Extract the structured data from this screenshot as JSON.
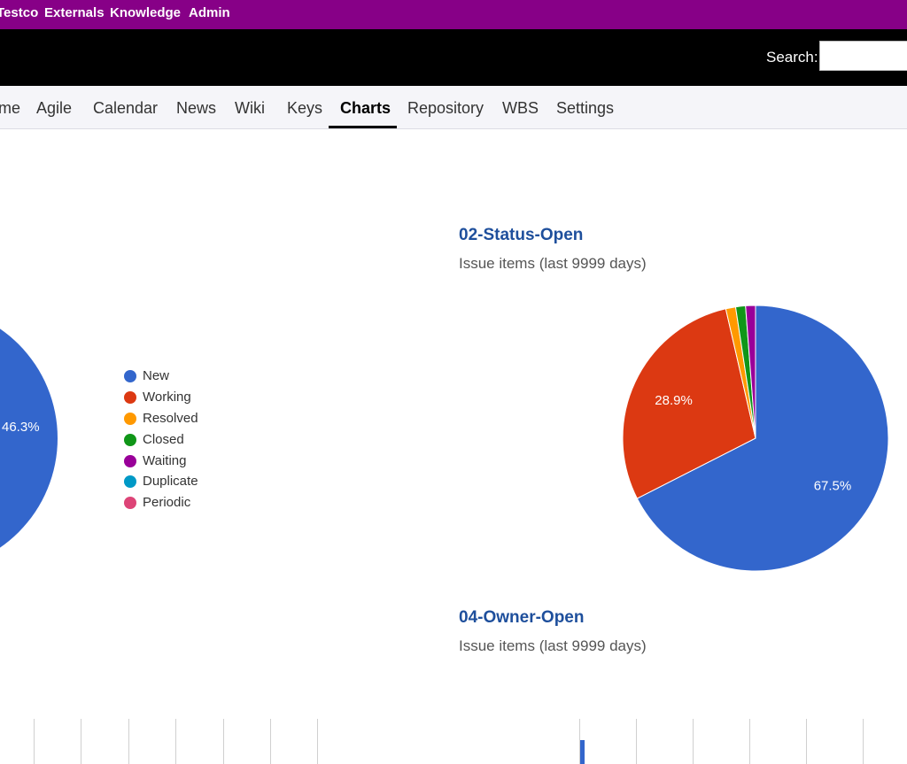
{
  "topnav": [
    "Testco",
    "Externals",
    "Knowledge",
    "Admin"
  ],
  "header": {
    "search_label": "Search:",
    "search_value": ""
  },
  "tabs": [
    "me",
    "Agile",
    "Calendar",
    "News",
    "Wiki",
    "Keys",
    "Charts",
    "Repository",
    "WBS",
    "Settings"
  ],
  "active_tab": "Charts",
  "legend": [
    {
      "label": "New",
      "color": "#3366cc"
    },
    {
      "label": "Working",
      "color": "#dc3912"
    },
    {
      "label": "Resolved",
      "color": "#ff9900"
    },
    {
      "label": "Closed",
      "color": "#109618"
    },
    {
      "label": "Waiting",
      "color": "#990099"
    },
    {
      "label": "Duplicate",
      "color": "#0099c6"
    },
    {
      "label": "Periodic",
      "color": "#dd4477"
    }
  ],
  "charts": {
    "left": {
      "visible_label": "46.3%"
    },
    "status_open": {
      "title": "02-Status-Open",
      "subtitle": "Issue items (last 9999 days)"
    },
    "owner_open": {
      "title": "04-Owner-Open",
      "subtitle": "Issue items (last 9999 days)"
    }
  },
  "chart_data": [
    {
      "type": "pie",
      "title": "",
      "categories": [
        "New"
      ],
      "values": [
        46.3
      ],
      "labels": [
        "46.3%"
      ]
    },
    {
      "type": "pie",
      "title": "02-Status-Open",
      "categories": [
        "New",
        "Working",
        "Resolved",
        "Closed",
        "Waiting"
      ],
      "values": [
        67.5,
        28.9,
        1.2,
        1.2,
        1.2
      ],
      "labels": [
        "67.5%",
        "28.9%",
        "",
        "",
        ""
      ],
      "colors": [
        "#3366cc",
        "#dc3912",
        "#ff9900",
        "#109618",
        "#990099"
      ]
    }
  ]
}
